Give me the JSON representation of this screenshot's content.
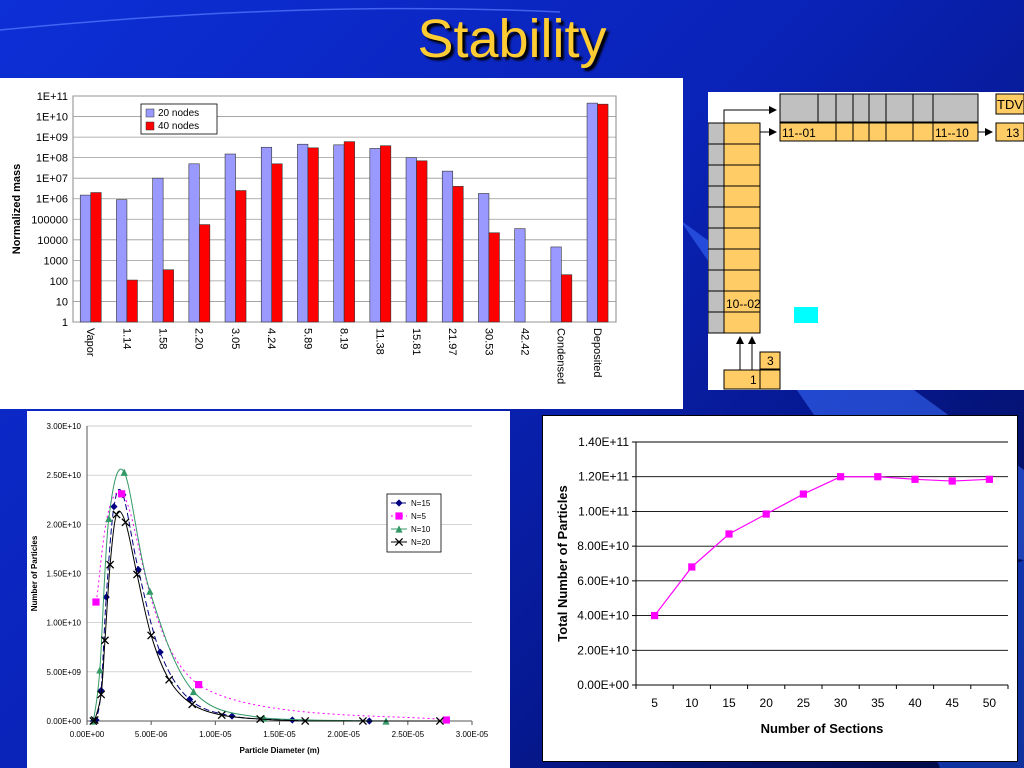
{
  "slide": {
    "title": "Stability"
  },
  "chart_data": [
    {
      "type": "bar",
      "scale": "log",
      "ylabel": "Normalized mass",
      "ylim": [
        1,
        100000000000
      ],
      "yticks": [
        "1E+11",
        "1E+10",
        "1E+09",
        "1E+08",
        "1E+07",
        "1E+06",
        "100000",
        "10000",
        "1000",
        "100",
        "10",
        "1"
      ],
      "categories": [
        "Vapor",
        "1.14",
        "1.58",
        "2.20",
        "3.05",
        "4.24",
        "5.89",
        "8.19",
        "11.38",
        "15.81",
        "21.97",
        "30.53",
        "42.42",
        "Condensed",
        "Deposited"
      ],
      "legend": "top-left",
      "series": [
        {
          "name": "20 nodes",
          "color": "#9999ff",
          "values": [
            1500000,
            900000,
            10000000,
            50000000,
            150000000,
            320000000,
            450000000,
            420000000,
            280000000,
            100000000,
            22000000,
            1800000,
            35000,
            4500,
            45000000000
          ]
        },
        {
          "name": "40 nodes",
          "color": "#ff0000",
          "values": [
            2000000,
            110,
            350,
            55000,
            2500000,
            50000000,
            300000000,
            600000000,
            380000000,
            70000000,
            4000000,
            22000,
            null,
            200,
            40000000000
          ]
        }
      ]
    },
    {
      "type": "line",
      "xlabel": "Particle Diameter (m)",
      "ylabel": "Number of Particles",
      "xlim": [
        0,
        3e-05
      ],
      "ylim": [
        0,
        30000000000
      ],
      "xticks": [
        "0.00E+00",
        "5.00E-06",
        "1.00E-05",
        "1.50E-05",
        "2.00E-05",
        "2.50E-05",
        "3.00E-05"
      ],
      "yticks": [
        "0.00E+00",
        "5.00E+09",
        "1.00E+10",
        "1.50E+10",
        "2.00E+10",
        "2.50E+10",
        "3.00E+10"
      ],
      "legend": "right",
      "series": [
        {
          "name": "N=15",
          "color": "#000080",
          "marker": "diamond",
          "dash": "6,3",
          "x": [
            5e-07,
            7e-07,
            1.1e-06,
            1.5e-06,
            2.1e-06,
            2.8e-06,
            4e-06,
            5.7e-06,
            8e-06,
            1.13e-05,
            1.6e-05,
            2.2e-05
          ],
          "y": [
            0,
            100000000,
            3100000000,
            12600000000,
            21800000000,
            23000000000,
            15400000000,
            7000000000,
            2200000000,
            500000000,
            100000000,
            0
          ]
        },
        {
          "name": "N=5",
          "color": "#ff00ff",
          "marker": "square",
          "dash": "2,3",
          "x": [
            7e-07,
            2.7e-06,
            8.7e-06,
            2.8e-05
          ],
          "y": [
            12100000000,
            23100000000,
            3700000000,
            100000000
          ]
        },
        {
          "name": "N=10",
          "color": "#339966",
          "marker": "triangle",
          "dash": "",
          "x": [
            5e-07,
            1e-06,
            1.7e-06,
            2.9e-06,
            4.9e-06,
            8.3e-06,
            1.38e-05,
            2.33e-05
          ],
          "y": [
            0,
            5200000000,
            20600000000,
            25300000000,
            13200000000,
            3000000000,
            300000000,
            0
          ]
        },
        {
          "name": "N=20",
          "color": "#000000",
          "marker": "x",
          "dash": "",
          "x": [
            5e-07,
            6e-07,
            1.1e-06,
            1.4e-06,
            1.8e-06,
            2.3e-06,
            3e-06,
            3.9e-06,
            5e-06,
            6.4e-06,
            8.2e-06,
            1.05e-05,
            1.35e-05,
            1.7e-05,
            2.15e-05,
            2.75e-05
          ],
          "y": [
            0,
            100000000,
            2700000000,
            8200000000,
            15900000000,
            21000000000,
            20200000000,
            14900000000,
            8700000000,
            4200000000,
            1700000000,
            600000000,
            200000000,
            0,
            0,
            0
          ]
        }
      ]
    },
    {
      "type": "line",
      "xlabel": "Number of Sections",
      "ylabel": "Total Number of Particles",
      "xlim": [
        2.5,
        52.5
      ],
      "ylim": [
        0,
        140000000000
      ],
      "xticks": [
        "5",
        "10",
        "15",
        "20",
        "25",
        "30",
        "35",
        "40",
        "45",
        "50"
      ],
      "yticks": [
        "0.00E+00",
        "2.00E+10",
        "4.00E+10",
        "6.00E+10",
        "8.00E+10",
        "1.00E+11",
        "1.20E+11",
        "1.40E+11"
      ],
      "grid": true,
      "series": [
        {
          "name": "",
          "color": "#ff00ff",
          "marker": "square",
          "x": [
            5,
            10,
            15,
            20,
            25,
            30,
            35,
            40,
            45,
            50
          ],
          "y": [
            40000000000,
            68000000000,
            87000000000,
            98500000000,
            110000000000,
            120000000000,
            120000000000,
            118500000000,
            117500000000,
            118500000000
          ]
        }
      ]
    }
  ],
  "diagram": {
    "labels": {
      "tdv": "TDV",
      "row_start": "11--01",
      "row_end": "11--10",
      "right_box": "13",
      "col_box": "10--02",
      "bottom_small": "3",
      "bottom_box": "1"
    },
    "colors": {
      "orange": "#ffcc66",
      "gray": "#c0c0c0",
      "cyan": "#00ffff"
    }
  }
}
